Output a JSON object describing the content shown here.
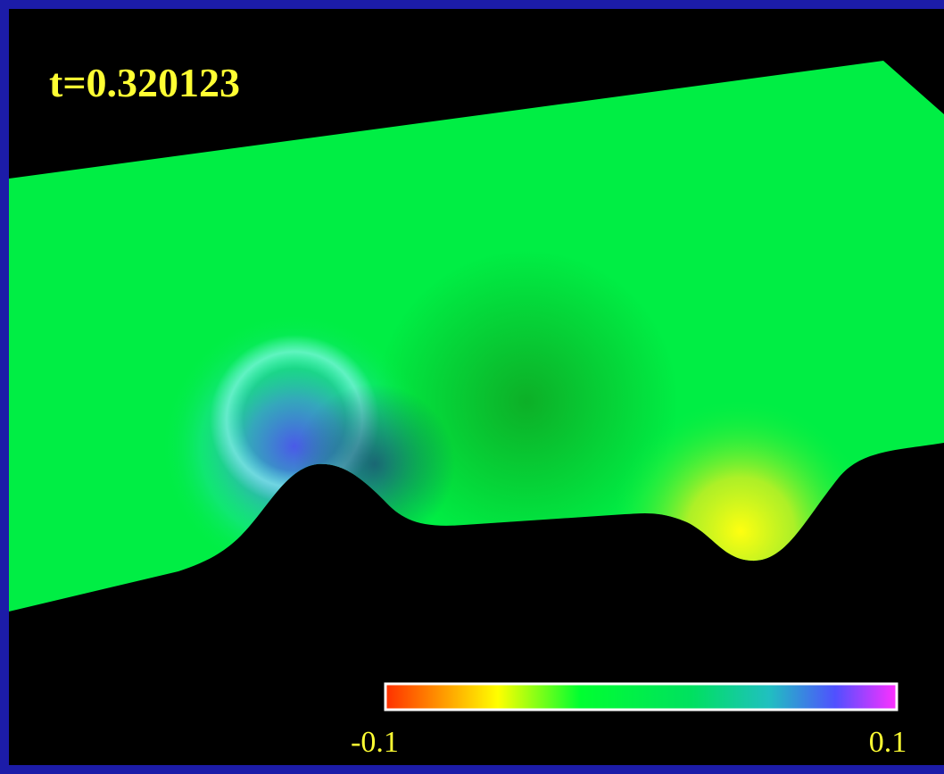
{
  "time_label": "t=0.320123",
  "colorbar": {
    "min_label": "-0.1",
    "max_label": "0.1"
  }
}
